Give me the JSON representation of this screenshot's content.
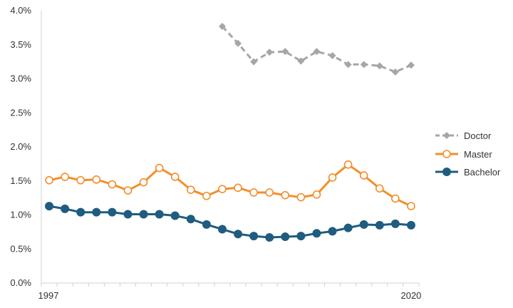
{
  "chart_data": {
    "type": "line",
    "x": [
      1997,
      1998,
      1999,
      2000,
      2001,
      2002,
      2003,
      2004,
      2005,
      2006,
      2007,
      2008,
      2009,
      2010,
      2011,
      2012,
      2013,
      2014,
      2015,
      2016,
      2017,
      2018,
      2019,
      2020
    ],
    "x_tick_labels": [
      "1997",
      "2020"
    ],
    "y_tick_labels": [
      "0.0%",
      "0.5%",
      "1.0%",
      "1.5%",
      "2.0%",
      "2.5%",
      "3.0%",
      "3.5%",
      "4.0%"
    ],
    "ylim": [
      0,
      4.0
    ],
    "y_unit": "%",
    "grid": false,
    "legend_position": "right",
    "series": [
      {
        "name": "Doctor",
        "color": "#a6a6a6",
        "line_style": "dashed",
        "marker": "diamond",
        "values": [
          null,
          null,
          null,
          null,
          null,
          null,
          null,
          null,
          null,
          null,
          null,
          3.77,
          3.52,
          3.25,
          3.39,
          3.4,
          3.26,
          3.4,
          3.34,
          3.21,
          3.21,
          3.19,
          3.1,
          3.2
        ]
      },
      {
        "name": "Master",
        "color": "#f28e2b",
        "line_style": "solid",
        "marker": "open-circle",
        "values": [
          1.51,
          1.56,
          1.51,
          1.52,
          1.45,
          1.36,
          1.48,
          1.69,
          1.56,
          1.37,
          1.28,
          1.38,
          1.4,
          1.33,
          1.33,
          1.29,
          1.26,
          1.3,
          1.55,
          1.74,
          1.58,
          1.39,
          1.24,
          1.13
        ]
      },
      {
        "name": "Bachelor",
        "color": "#1f5c80",
        "line_style": "solid",
        "marker": "filled-circle",
        "values": [
          1.13,
          1.09,
          1.04,
          1.04,
          1.04,
          1.01,
          1.01,
          1.01,
          0.99,
          0.94,
          0.86,
          0.79,
          0.72,
          0.69,
          0.67,
          0.68,
          0.69,
          0.73,
          0.76,
          0.81,
          0.86,
          0.85,
          0.87,
          0.85
        ]
      }
    ]
  }
}
